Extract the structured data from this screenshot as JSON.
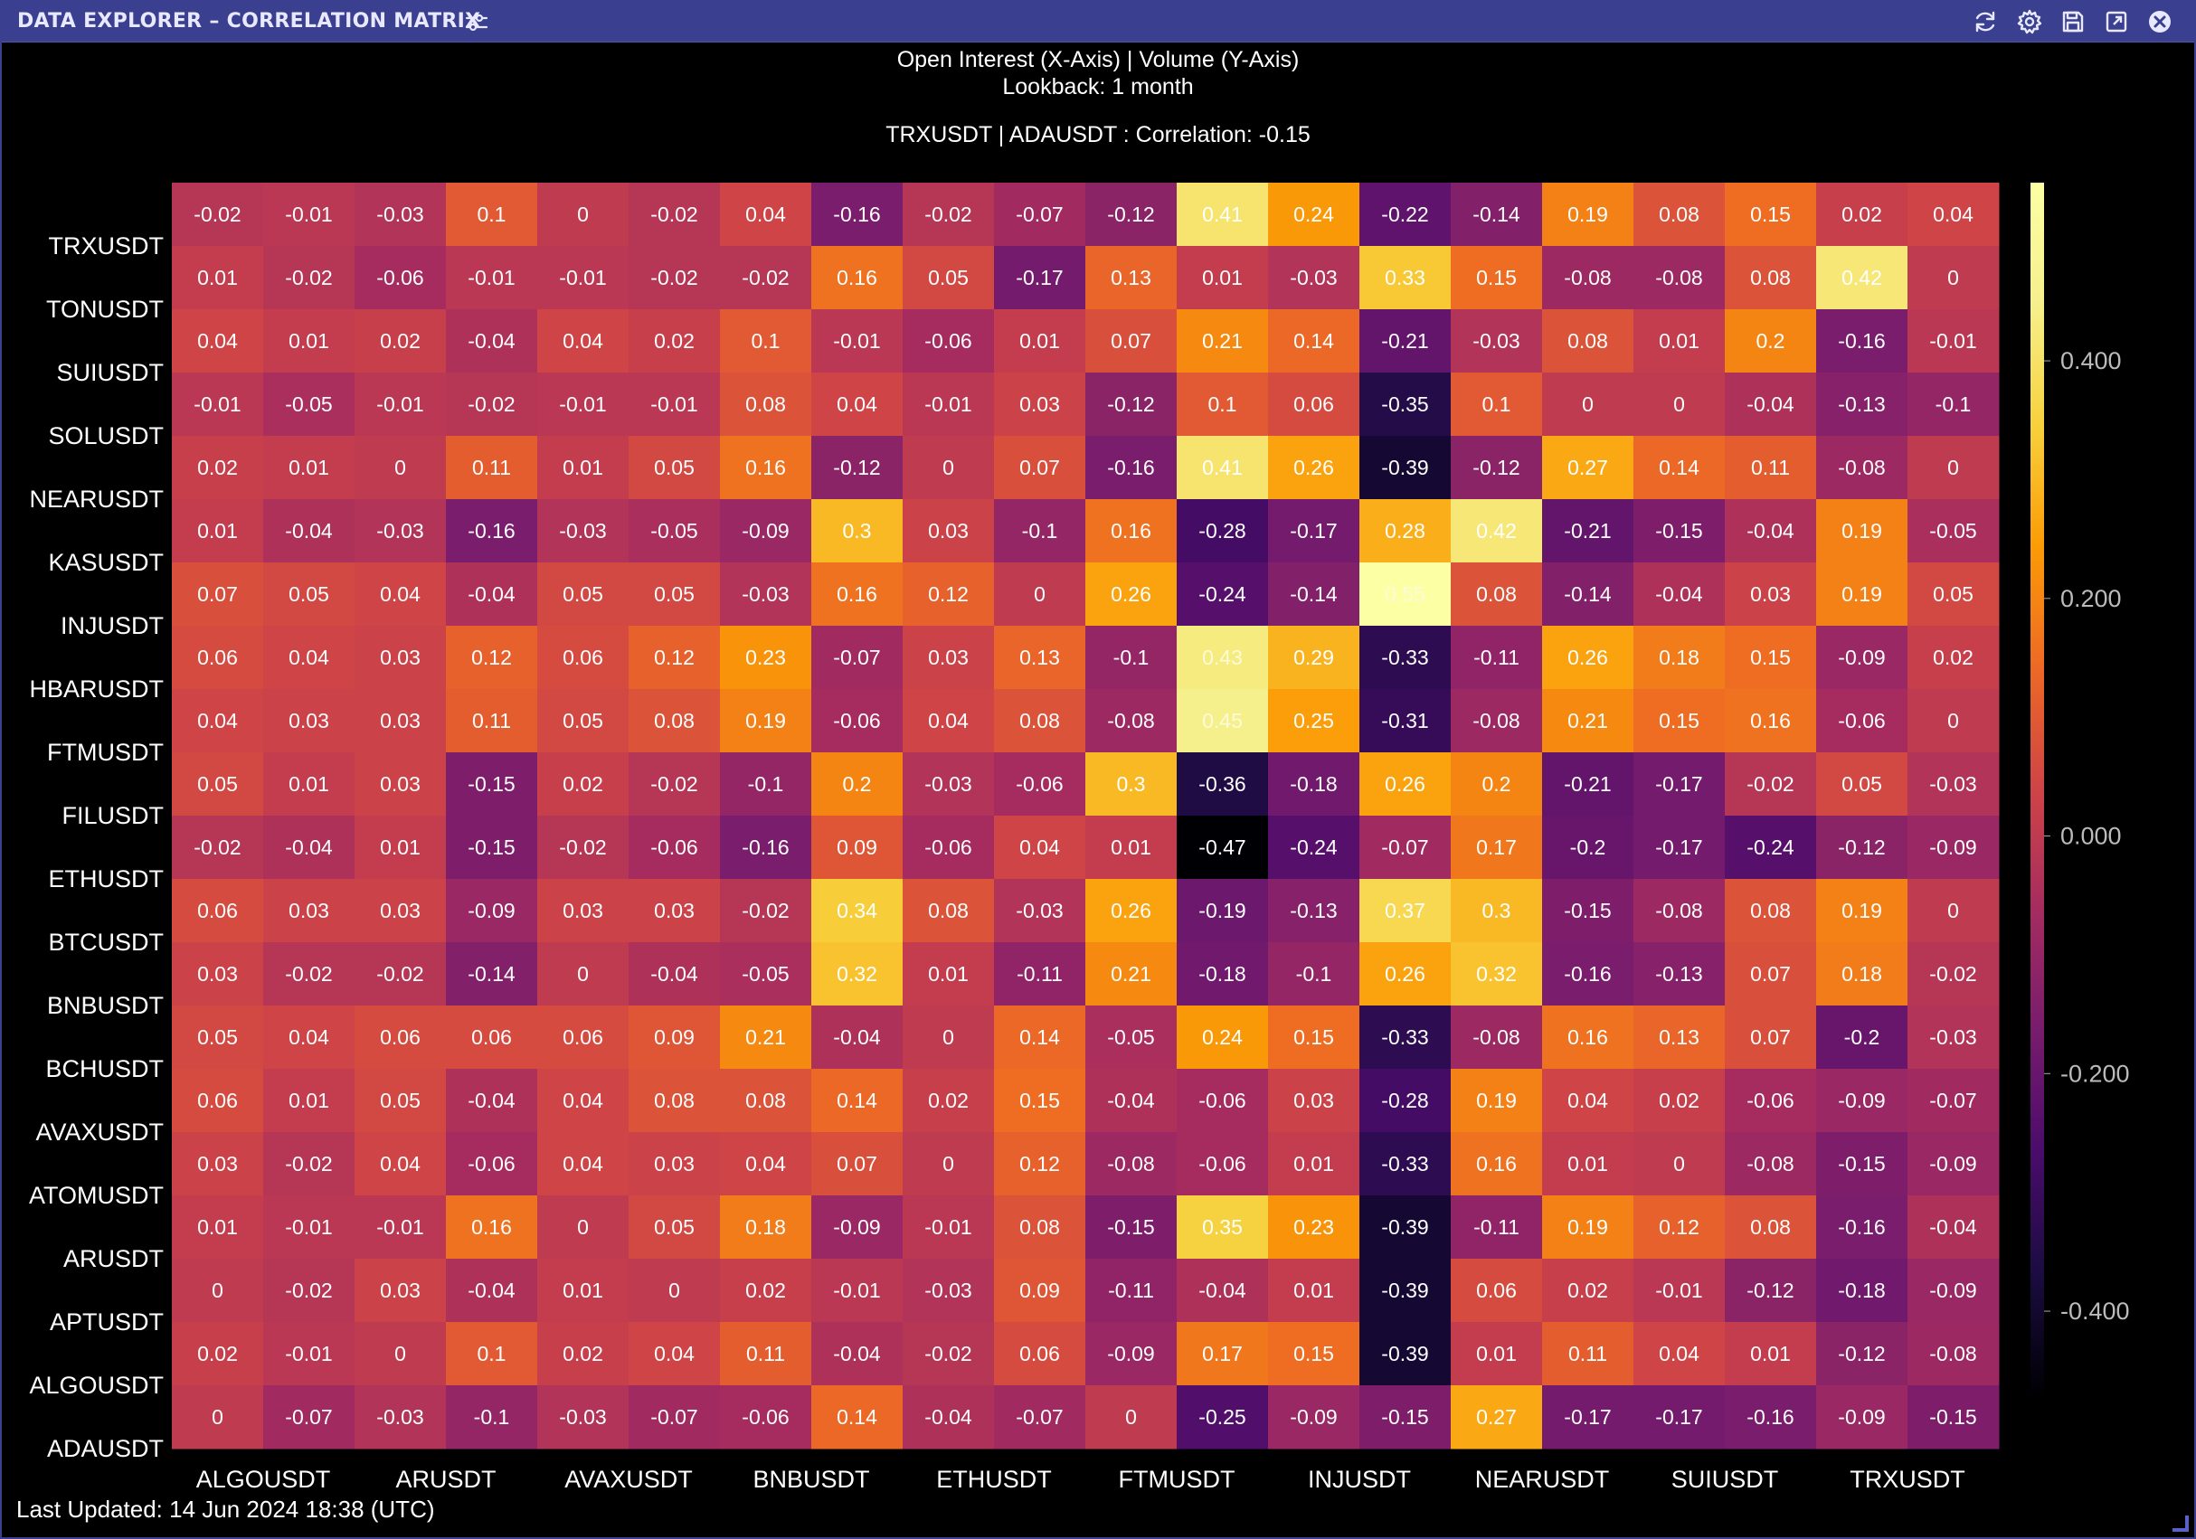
{
  "window": {
    "title": "DATA EXPLORER – CORRELATION MATRIX",
    "title_icon": "sliders-icon",
    "controls": [
      "refresh-icon",
      "gear-icon",
      "save-icon",
      "maximize-icon",
      "close-icon"
    ],
    "accent_color": "#3b3f8f"
  },
  "header": {
    "line1": "Open Interest (X-Axis) | Volume (Y-Axis)",
    "line2": "Lookback: 1 month",
    "hover_info": "TRXUSDT | ADAUSDT : Correlation: -0.15"
  },
  "footer": {
    "last_updated": "Last Updated: 14 Jun 2024 18:38 (UTC)"
  },
  "chart_data": {
    "type": "heatmap",
    "colormap": "inferno",
    "zlim": [
      -0.47,
      0.55
    ],
    "colorbar_ticks": [
      0.4,
      0.2,
      0.0,
      -0.2,
      -0.4
    ],
    "colorbar_tick_labels": [
      "0.400",
      "0.200",
      "0.000",
      "-0.200",
      "-0.400"
    ],
    "x_labels_shown": [
      "ALGOUSDT",
      "ARUSDT",
      "AVAXUSDT",
      "BNBUSDT",
      "ETHUSDT",
      "FTMUSDT",
      "INJUSDT",
      "NEARUSDT",
      "SUIUSDT",
      "TRXUSDT"
    ],
    "y_labels": [
      "TRXUSDT",
      "TONUSDT",
      "SUIUSDT",
      "SOLUSDT",
      "NEARUSDT",
      "KASUSDT",
      "INJUSDT",
      "HBARUSDT",
      "FTMUSDT",
      "FILUSDT",
      "ETHUSDT",
      "BTCUSDT",
      "BNBUSDT",
      "BCHUSDT",
      "AVAXUSDT",
      "ATOMUSDT",
      "ARUSDT",
      "APTUSDT",
      "ALGOUSDT",
      "ADAUSDT"
    ],
    "values": [
      [
        -0.02,
        -0.01,
        -0.03,
        0.1,
        0,
        -0.02,
        0.04,
        -0.16,
        -0.02,
        -0.07,
        -0.12,
        0.41,
        0.24,
        -0.22,
        -0.14,
        0.19,
        0.08,
        0.15,
        0.02,
        0.04
      ],
      [
        0.01,
        -0.02,
        -0.06,
        -0.01,
        -0.01,
        -0.02,
        -0.02,
        0.16,
        0.05,
        -0.17,
        0.13,
        0.01,
        -0.03,
        0.33,
        0.15,
        -0.08,
        -0.08,
        0.08,
        0.42,
        0
      ],
      [
        0.04,
        0.01,
        0.02,
        -0.04,
        0.04,
        0.02,
        0.1,
        -0.01,
        -0.06,
        0.01,
        0.07,
        0.21,
        0.14,
        -0.21,
        -0.03,
        0.08,
        0.01,
        0.2,
        -0.16,
        -0.01
      ],
      [
        -0.01,
        -0.05,
        -0.01,
        -0.02,
        -0.01,
        -0.01,
        0.08,
        0.04,
        -0.01,
        0.03,
        -0.12,
        0.1,
        0.06,
        -0.35,
        0.1,
        0,
        0,
        -0.04,
        -0.13,
        -0.1
      ],
      [
        0.02,
        0.01,
        0,
        0.11,
        0.01,
        0.05,
        0.16,
        -0.12,
        0,
        0.07,
        -0.16,
        0.41,
        0.26,
        -0.39,
        -0.12,
        0.27,
        0.14,
        0.11,
        -0.08,
        0
      ],
      [
        0.01,
        -0.04,
        -0.03,
        -0.16,
        -0.03,
        -0.05,
        -0.09,
        0.3,
        0.03,
        -0.1,
        0.16,
        -0.28,
        -0.17,
        0.28,
        0.42,
        -0.21,
        -0.15,
        -0.04,
        0.19,
        -0.05
      ],
      [
        0.07,
        0.05,
        0.04,
        -0.04,
        0.05,
        0.05,
        -0.03,
        0.16,
        0.12,
        0,
        0.26,
        -0.24,
        -0.14,
        0.55,
        0.08,
        -0.14,
        -0.04,
        0.03,
        0.19,
        0.05
      ],
      [
        0.06,
        0.04,
        0.03,
        0.12,
        0.06,
        0.12,
        0.23,
        -0.07,
        0.03,
        0.13,
        -0.1,
        0.43,
        0.29,
        -0.33,
        -0.11,
        0.26,
        0.18,
        0.15,
        -0.09,
        0.02
      ],
      [
        0.04,
        0.03,
        0.03,
        0.11,
        0.05,
        0.08,
        0.19,
        -0.06,
        0.04,
        0.08,
        -0.08,
        0.45,
        0.25,
        -0.31,
        -0.08,
        0.21,
        0.15,
        0.16,
        -0.06,
        0
      ],
      [
        0.05,
        0.01,
        0.03,
        -0.15,
        0.02,
        -0.02,
        -0.1,
        0.2,
        -0.03,
        -0.06,
        0.3,
        -0.36,
        -0.18,
        0.26,
        0.2,
        -0.21,
        -0.17,
        -0.02,
        0.05,
        -0.03
      ],
      [
        -0.02,
        -0.04,
        0.01,
        -0.15,
        -0.02,
        -0.06,
        -0.16,
        0.09,
        -0.06,
        0.04,
        0.01,
        -0.47,
        -0.24,
        -0.07,
        0.17,
        -0.2,
        -0.17,
        -0.24,
        -0.12,
        -0.09
      ],
      [
        0.06,
        0.03,
        0.03,
        -0.09,
        0.03,
        0.03,
        -0.02,
        0.34,
        0.08,
        -0.03,
        0.26,
        -0.19,
        -0.13,
        0.37,
        0.3,
        -0.15,
        -0.08,
        0.08,
        0.19,
        0
      ],
      [
        0.03,
        -0.02,
        -0.02,
        -0.14,
        0,
        -0.04,
        -0.05,
        0.32,
        0.01,
        -0.11,
        0.21,
        -0.18,
        -0.1,
        0.26,
        0.32,
        -0.16,
        -0.13,
        0.07,
        0.18,
        -0.02
      ],
      [
        0.05,
        0.04,
        0.06,
        0.06,
        0.06,
        0.09,
        0.21,
        -0.04,
        0,
        0.14,
        -0.05,
        0.24,
        0.15,
        -0.33,
        -0.08,
        0.16,
        0.13,
        0.07,
        -0.2,
        -0.03
      ],
      [
        0.06,
        0.01,
        0.05,
        -0.04,
        0.04,
        0.08,
        0.08,
        0.14,
        0.02,
        0.15,
        -0.04,
        -0.06,
        0.03,
        -0.28,
        0.19,
        0.04,
        0.02,
        -0.06,
        -0.09,
        -0.07
      ],
      [
        0.03,
        -0.02,
        0.04,
        -0.06,
        0.04,
        0.03,
        0.04,
        0.07,
        0,
        0.12,
        -0.08,
        -0.06,
        0.01,
        -0.33,
        0.16,
        0.01,
        0,
        -0.08,
        -0.15,
        -0.09
      ],
      [
        0.01,
        -0.01,
        -0.01,
        0.16,
        0,
        0.05,
        0.18,
        -0.09,
        -0.01,
        0.08,
        -0.15,
        0.35,
        0.23,
        -0.39,
        -0.11,
        0.19,
        0.12,
        0.08,
        -0.16,
        -0.04
      ],
      [
        0,
        -0.02,
        0.03,
        -0.04,
        0.01,
        0,
        0.02,
        -0.01,
        -0.03,
        0.09,
        -0.11,
        -0.04,
        0.01,
        -0.39,
        0.06,
        0.02,
        -0.01,
        -0.12,
        -0.18,
        -0.09
      ],
      [
        0.02,
        -0.01,
        0,
        0.1,
        0.02,
        0.04,
        0.11,
        -0.04,
        -0.02,
        0.06,
        -0.09,
        0.17,
        0.15,
        -0.39,
        0.01,
        0.11,
        0.04,
        0.01,
        -0.12,
        -0.08
      ],
      [
        0,
        -0.07,
        -0.03,
        -0.1,
        -0.03,
        -0.07,
        -0.06,
        0.14,
        -0.04,
        -0.07,
        0,
        -0.25,
        -0.09,
        -0.15,
        0.27,
        -0.17,
        -0.17,
        -0.16,
        -0.09,
        -0.15
      ]
    ]
  }
}
